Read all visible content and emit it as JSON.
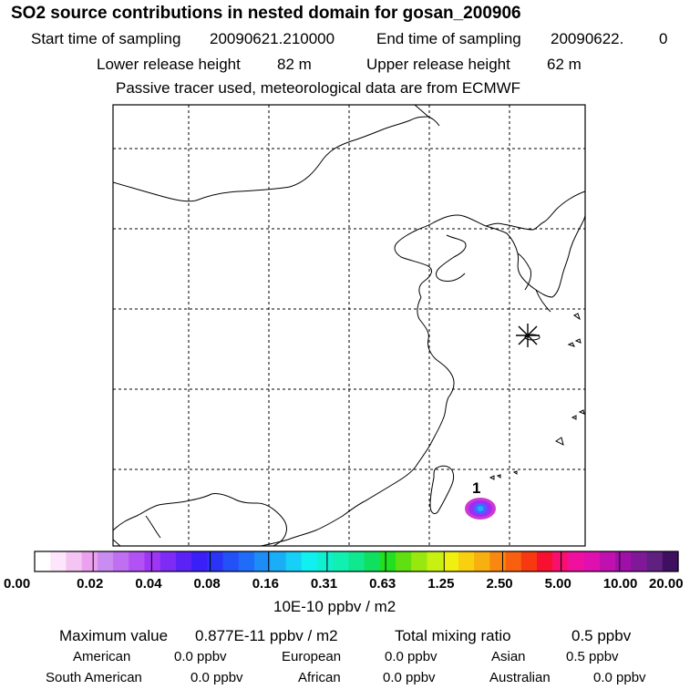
{
  "header": {
    "title": "SO2 source contributions in nested domain for gosan_200906",
    "start_label": "Start time of sampling",
    "start_value": "20090621.210000",
    "end_label": "End time of sampling",
    "end_value": "20090622.",
    "end_suffix": "0",
    "lower_label": "Lower release height",
    "lower_value": "82 m",
    "upper_label": "Upper release height",
    "upper_value": "62 m",
    "note": "Passive tracer used, meteorological data are from ECMWF"
  },
  "map": {
    "source_label": "1",
    "receptor_marker": "asterisk-icon",
    "plume_color_outer": "#cc22cc",
    "plume_color_inner": "#4466ff"
  },
  "colorbar": {
    "tick_labels": [
      "0.00",
      "0.02",
      "0.04",
      "0.08",
      "0.16",
      "0.31",
      "0.63",
      "1.25",
      "2.50",
      "5.00",
      "10.00",
      "20.00"
    ],
    "unit": "10E-10 ppbv / m2",
    "colors": [
      "#ffffff",
      "#fde6fb",
      "#f4c5f3",
      "#eba1ef",
      "#c98cf0",
      "#c06ef2",
      "#b251f4",
      "#9f36f5",
      "#7d2bf5",
      "#5a22f5",
      "#3b1ff7",
      "#2a34f7",
      "#2450f7",
      "#1e6cf7",
      "#1e8cf7",
      "#1aaef7",
      "#16d0f7",
      "#10f0f0",
      "#10f0d0",
      "#10f0b0",
      "#10e890",
      "#10e060",
      "#20e020",
      "#60e010",
      "#98e810",
      "#c8f010",
      "#f0f010",
      "#f8d010",
      "#f8b010",
      "#f88810",
      "#f86010",
      "#f83810",
      "#f81030",
      "#f81070",
      "#f010a0",
      "#e010b0",
      "#c010b0",
      "#a010a8",
      "#801898",
      "#602080",
      "#401060"
    ]
  },
  "summary": {
    "max_label": "Maximum value",
    "max_value": "0.877E-11 ppbv / m2",
    "total_label": "Total mixing ratio",
    "total_value": "0.5 ppbv",
    "regions": [
      {
        "name": "American",
        "value": "0.0 ppbv"
      },
      {
        "name": "European",
        "value": "0.0 ppbv"
      },
      {
        "name": "Asian",
        "value": "0.5 ppbv"
      },
      {
        "name": "South American",
        "value": "0.0 ppbv"
      },
      {
        "name": "African",
        "value": "0.0 ppbv"
      },
      {
        "name": "Australian",
        "value": "0.0 ppbv"
      }
    ]
  }
}
